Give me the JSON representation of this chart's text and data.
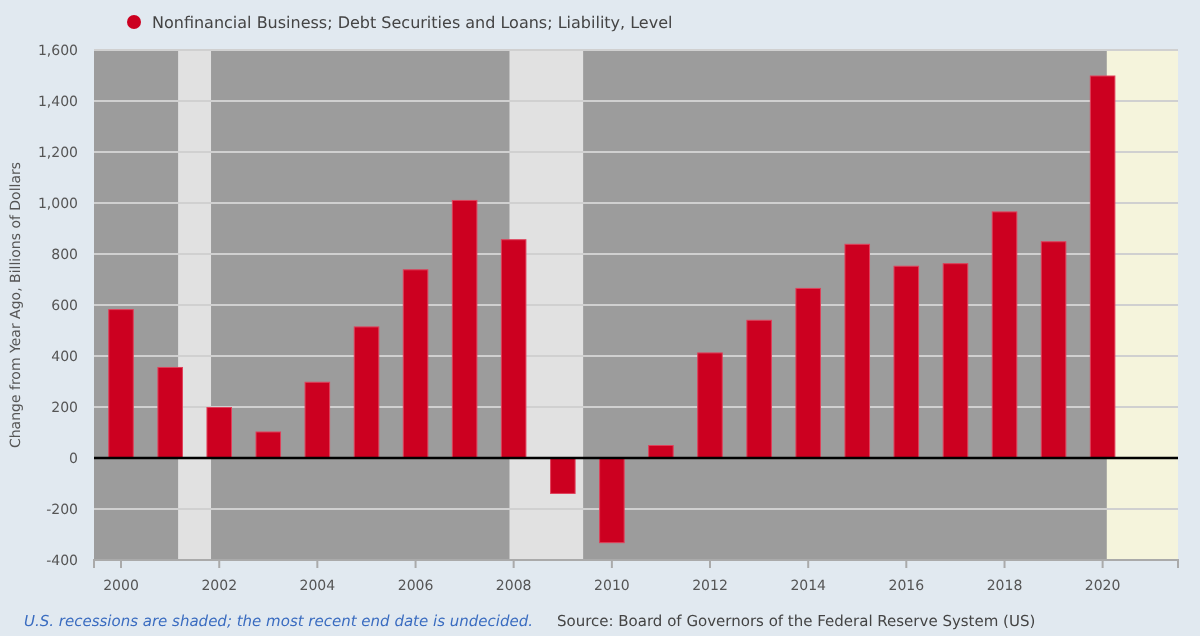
{
  "chart_data": {
    "type": "bar",
    "x": [
      "2000",
      "2001",
      "2002",
      "2003",
      "2004",
      "2005",
      "2006",
      "2007",
      "2008",
      "2009",
      "2010",
      "2011",
      "2012",
      "2013",
      "2014",
      "2015",
      "2016",
      "2017",
      "2018",
      "2019",
      "2020"
    ],
    "series": [
      {
        "name": "Nonfinancial Business; Debt Securities and Loans; Liability, Level",
        "color": "#cc0020",
        "values": [
          582,
          355,
          198,
          102,
          297,
          514,
          738,
          1010,
          856,
          -139,
          -332,
          49,
          412,
          540,
          665,
          838,
          752,
          762,
          965,
          848,
          1498
        ]
      }
    ],
    "xlim": [
      "1999-06-14",
      "2021-07-15"
    ],
    "xticks": [
      "2000",
      "2002",
      "2004",
      "2006",
      "2008",
      "2010",
      "2012",
      "2014",
      "2016",
      "2018",
      "2020"
    ],
    "ylim": [
      -400,
      1600
    ],
    "yticks": [
      -400,
      -200,
      0,
      200,
      400,
      600,
      800,
      {
        "value": 1000,
        "label": "1,000"
      },
      {
        "value": 1200,
        "label": "1,200"
      },
      {
        "value": 1400,
        "label": "1,400"
      },
      {
        "value": 1600,
        "label": "1,600"
      }
    ],
    "ylabel": "Change from Year Ago, Billions of Dollars",
    "grid": "y",
    "legend": "top left",
    "bands": [
      {
        "axis": "x",
        "from": "2001-03",
        "to": "2001-11",
        "color": "#e1e1e1"
      },
      {
        "axis": "x",
        "from": "2007-12",
        "to": "2009-06",
        "color": "#e1e1e1"
      },
      {
        "axis": "x",
        "from": "2020-02",
        "to": "2021-07-15",
        "color": "#f5f4dc"
      }
    ],
    "ref_lines": [
      {
        "axis": "y",
        "value": 0,
        "color": "#000000"
      }
    ],
    "annotations": [
      "U.S. recessions are shaded; the most recent end date is undecided.",
      "Source: Board of Governors of the Federal Reserve System (US)"
    ]
  }
}
